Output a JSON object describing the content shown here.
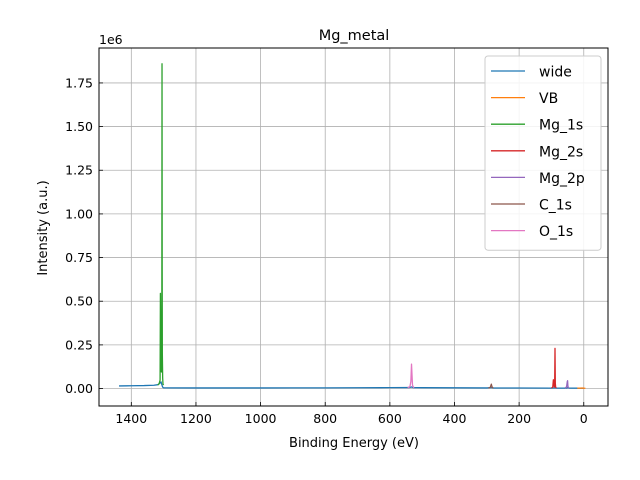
{
  "chart_data": {
    "type": "line",
    "title": "Mg_metal",
    "xlabel": "Binding Energy (eV)",
    "ylabel": "Intensity (a.u.)",
    "y_multiplier_label": "1e6",
    "y_multiplier": 1000000,
    "xlim": [
      1500,
      -75
    ],
    "ylim": [
      -100000,
      1950000
    ],
    "x_reversed": true,
    "grid": true,
    "legend_position": "top-right",
    "x_ticks": [
      1400,
      1200,
      1000,
      800,
      600,
      400,
      200,
      0
    ],
    "x_tick_labels": [
      "1400",
      "1200",
      "1000",
      "800",
      "600",
      "400",
      "200",
      "0"
    ],
    "y_ticks": [
      0,
      250000,
      500000,
      750000,
      1000000,
      1250000,
      1500000,
      1750000
    ],
    "y_tick_labels": [
      "0.00",
      "0.25",
      "0.50",
      "0.75",
      "1.00",
      "1.25",
      "1.50",
      "1.75"
    ],
    "series": [
      {
        "name": "wide",
        "color": "#1f77b4",
        "points": [
          [
            1438,
            15000
          ],
          [
            1400,
            16000
          ],
          [
            1360,
            17000
          ],
          [
            1330,
            19000
          ],
          [
            1318,
            22000
          ],
          [
            1312,
            30000
          ],
          [
            1308,
            38000
          ],
          [
            1306,
            25000
          ],
          [
            1303,
            8000
          ],
          [
            1300,
            4000
          ],
          [
            1200,
            3500
          ],
          [
            1100,
            3500
          ],
          [
            1000,
            3500
          ],
          [
            900,
            3800
          ],
          [
            800,
            4000
          ],
          [
            700,
            4500
          ],
          [
            600,
            5000
          ],
          [
            540,
            5500
          ],
          [
            533,
            9000
          ],
          [
            528,
            5000
          ],
          [
            500,
            4800
          ],
          [
            400,
            4200
          ],
          [
            300,
            3500
          ],
          [
            285,
            5000
          ],
          [
            280,
            3200
          ],
          [
            200,
            3000
          ],
          [
            100,
            2500
          ],
          [
            90,
            4000
          ],
          [
            85,
            2500
          ],
          [
            52,
            2300
          ],
          [
            50,
            5000
          ],
          [
            46,
            2500
          ],
          [
            0,
            2000
          ]
        ]
      },
      {
        "name": "VB",
        "color": "#ff7f0e",
        "points": [
          [
            20,
            2000
          ],
          [
            12,
            2500
          ],
          [
            5,
            3000
          ],
          [
            0,
            2000
          ],
          [
            -5,
            1500
          ]
        ]
      },
      {
        "name": "Mg_1s",
        "color": "#2ca02c",
        "points": [
          [
            1318,
            20000
          ],
          [
            1314,
            28000
          ],
          [
            1311,
            48000
          ],
          [
            1310,
            545000
          ],
          [
            1309,
            200000
          ],
          [
            1308,
            110000
          ],
          [
            1307,
            95000
          ],
          [
            1306,
            180000
          ],
          [
            1305.5,
            580000
          ],
          [
            1305,
            1860000
          ],
          [
            1304.5,
            680000
          ],
          [
            1304,
            200000
          ],
          [
            1303,
            60000
          ],
          [
            1302,
            25000
          ],
          [
            1300,
            20000
          ]
        ]
      },
      {
        "name": "Mg_2s",
        "color": "#d62728",
        "points": [
          [
            100,
            3000
          ],
          [
            96,
            8000
          ],
          [
            94,
            50000
          ],
          [
            93,
            20000
          ],
          [
            91,
            10000
          ],
          [
            90,
            30000
          ],
          [
            89,
            230000
          ],
          [
            88,
            30000
          ],
          [
            87,
            8000
          ],
          [
            85,
            3000
          ]
        ]
      },
      {
        "name": "Mg_2p",
        "color": "#9467bd",
        "points": [
          [
            58,
            3000
          ],
          [
            55,
            6000
          ],
          [
            53,
            12000
          ],
          [
            51,
            40000
          ],
          [
            50,
            45000
          ],
          [
            49,
            12000
          ],
          [
            47,
            5000
          ],
          [
            45,
            3000
          ]
        ]
      },
      {
        "name": "C_1s",
        "color": "#8c564b",
        "points": [
          [
            295,
            3000
          ],
          [
            291,
            5000
          ],
          [
            289,
            8000
          ],
          [
            287,
            20000
          ],
          [
            286,
            25000
          ],
          [
            285,
            18000
          ],
          [
            283,
            6000
          ],
          [
            280,
            3000
          ]
        ]
      },
      {
        "name": "O_1s",
        "color": "#e377c2",
        "points": [
          [
            545,
            5000
          ],
          [
            538,
            10000
          ],
          [
            535,
            40000
          ],
          [
            533,
            140000
          ],
          [
            531,
            60000
          ],
          [
            530,
            20000
          ],
          [
            528,
            10000
          ],
          [
            525,
            5000
          ]
        ]
      }
    ]
  }
}
